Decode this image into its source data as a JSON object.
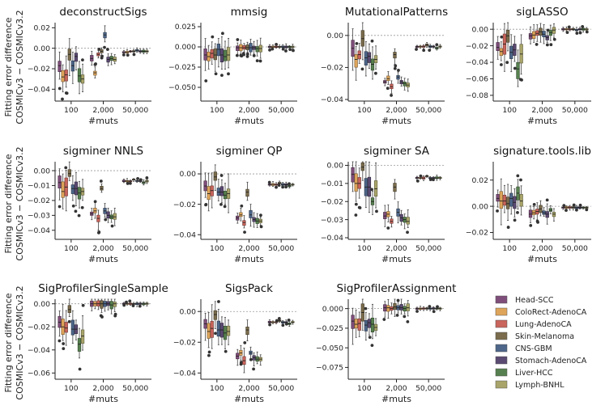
{
  "figure": {
    "y_axis_label_line1": "Fitting error difference",
    "y_axis_label_line2": "COSMICv3 − COSMICv3.2",
    "x_axis_label": "#muts"
  },
  "legend": [
    {
      "label": "Head-SCC",
      "color": "#7f4e7a"
    },
    {
      "label": "ColoRect-AdenoCA",
      "color": "#dea55a"
    },
    {
      "label": "Lung-AdenoCA",
      "color": "#c9655c"
    },
    {
      "label": "Skin-Melanoma",
      "color": "#7a6c4c"
    },
    {
      "label": "CNS-GBM",
      "color": "#4d6689"
    },
    {
      "label": "Stomach-AdenoCA",
      "color": "#5b4a72"
    },
    {
      "label": "Liver-HCC",
      "color": "#56804f"
    },
    {
      "label": "Lymph-BNHL",
      "color": "#a9a56a"
    }
  ],
  "chart_data": [
    {
      "type": "box",
      "title": "deconstructSigs",
      "categories": [
        "100",
        "2,000",
        "50,000"
      ],
      "xlabel": "#muts",
      "ylim": [
        -0.05,
        0.025
      ],
      "yticks": [
        -0.04,
        -0.02,
        0.0,
        0.02
      ],
      "ytick_labels": [
        "−0.04",
        "−0.02",
        "0.00",
        "0.02"
      ],
      "series_medians": [
        [
          -0.017,
          -0.028,
          -0.026,
          -0.006,
          -0.017,
          -0.008,
          -0.027,
          -0.03
        ],
        [
          -0.01,
          -0.024,
          -0.006,
          -0.003,
          0.013,
          -0.011,
          -0.01,
          -0.011
        ],
        [
          -0.004,
          -0.004,
          -0.003,
          -0.003,
          -0.002,
          -0.003,
          -0.003,
          -0.003
        ]
      ]
    },
    {
      "type": "box",
      "title": "mmsig",
      "categories": [
        "100",
        "2,000",
        "50,000"
      ],
      "xlabel": "#muts",
      "ylim": [
        -0.065,
        0.03
      ],
      "yticks": [
        -0.05,
        -0.025,
        0.0,
        0.025
      ],
      "ytick_labels": [
        "−0.050",
        "−0.025",
        "0.000",
        "0.025"
      ],
      "series_medians": [
        [
          -0.01,
          -0.012,
          -0.008,
          -0.01,
          -0.003,
          -0.01,
          -0.012,
          -0.01
        ],
        [
          -0.001,
          -0.001,
          -0.001,
          -0.001,
          -0.001,
          -0.001,
          -0.002,
          -0.002
        ],
        [
          0.0,
          0.0,
          0.0,
          0.0,
          0.0,
          0.0,
          0.0,
          0.0
        ]
      ]
    },
    {
      "type": "box",
      "title": "MutationalPatterns",
      "categories": [
        "100",
        "2,000",
        "50,000"
      ],
      "xlabel": "#muts",
      "ylim": [
        -0.04,
        0.008
      ],
      "yticks": [
        -0.04,
        -0.02,
        0.0
      ],
      "ytick_labels": [
        "−0.04",
        "−0.02",
        "0.00"
      ],
      "series_medians": [
        [
          -0.008,
          -0.015,
          -0.012,
          -0.002,
          -0.014,
          -0.013,
          -0.018,
          -0.015
        ],
        [
          -0.029,
          -0.027,
          -0.032,
          -0.012,
          -0.026,
          -0.029,
          -0.03,
          -0.031
        ],
        [
          -0.007,
          -0.007,
          -0.007,
          -0.006,
          -0.007,
          -0.007,
          -0.008,
          -0.007
        ]
      ]
    },
    {
      "type": "box",
      "title": "sigLASSO",
      "categories": [
        "100",
        "2,000",
        "50,000"
      ],
      "xlabel": "#muts",
      "ylim": [
        -0.085,
        0.008
      ],
      "yticks": [
        -0.08,
        -0.06,
        -0.04,
        -0.02,
        0.0
      ],
      "ytick_labels": [
        "−0.08",
        "−0.06",
        "−0.04",
        "−0.02",
        "0.00"
      ],
      "series_medians": [
        [
          -0.022,
          -0.027,
          -0.018,
          -0.008,
          -0.028,
          -0.025,
          -0.048,
          -0.03
        ],
        [
          -0.008,
          -0.007,
          -0.005,
          -0.003,
          -0.006,
          -0.01,
          -0.004,
          -0.001
        ],
        [
          0.0,
          0.0,
          0.0,
          0.0,
          -0.001,
          0.0,
          0.0,
          0.0
        ]
      ]
    },
    {
      "type": "box",
      "title": "sigminer NNLS",
      "categories": [
        "100",
        "2,000",
        "50,000"
      ],
      "xlabel": "#muts",
      "ylim": [
        -0.045,
        0.006
      ],
      "yticks": [
        -0.04,
        -0.03,
        -0.02,
        -0.01,
        0.0
      ],
      "ytick_labels": [
        "−0.04",
        "−0.03",
        "−0.02",
        "−0.01",
        "0.00"
      ],
      "series_medians": [
        [
          -0.008,
          -0.014,
          -0.011,
          -0.002,
          -0.012,
          -0.012,
          -0.015,
          -0.014
        ],
        [
          -0.029,
          -0.027,
          -0.032,
          -0.012,
          -0.027,
          -0.03,
          -0.031,
          -0.031
        ],
        [
          -0.007,
          -0.007,
          -0.007,
          -0.006,
          -0.007,
          -0.007,
          -0.008,
          -0.007
        ]
      ]
    },
    {
      "type": "box",
      "title": "sigminer QP",
      "categories": [
        "100",
        "2,000",
        "50,000"
      ],
      "xlabel": "#muts",
      "ylim": [
        -0.042,
        0.008
      ],
      "yticks": [
        -0.04,
        -0.02,
        0.0
      ],
      "ytick_labels": [
        "−0.04",
        "−0.02",
        "0.00"
      ],
      "series_medians": [
        [
          -0.008,
          -0.013,
          -0.011,
          -0.002,
          -0.012,
          -0.012,
          -0.014,
          -0.013
        ],
        [
          -0.029,
          -0.027,
          -0.032,
          -0.012,
          -0.027,
          -0.03,
          -0.031,
          -0.031
        ],
        [
          -0.007,
          -0.007,
          -0.007,
          -0.006,
          -0.007,
          -0.007,
          -0.008,
          -0.007
        ]
      ]
    },
    {
      "type": "box",
      "title": "sigminer SA",
      "categories": [
        "100",
        "2,000",
        "50,000"
      ],
      "xlabel": "#muts",
      "ylim": [
        -0.04,
        0.002
      ],
      "yticks": [
        -0.04,
        -0.03,
        -0.02,
        -0.01,
        0.0
      ],
      "ytick_labels": [
        "−0.04",
        "−0.03",
        "−0.02",
        "−0.01",
        "0.00"
      ],
      "series_medians": [
        [
          -0.005,
          -0.01,
          -0.01,
          -0.001,
          -0.012,
          -0.012,
          -0.02,
          -0.013
        ],
        [
          -0.028,
          -0.027,
          -0.031,
          -0.012,
          -0.026,
          -0.029,
          -0.03,
          -0.031
        ],
        [
          -0.007,
          -0.007,
          -0.007,
          -0.006,
          -0.007,
          -0.007,
          -0.007,
          -0.007
        ]
      ]
    },
    {
      "type": "box",
      "title": "signature.tools.lib",
      "categories": [
        "100",
        "2,000",
        "50,000"
      ],
      "xlabel": "#muts",
      "ylim": [
        -0.024,
        0.034
      ],
      "yticks": [
        -0.02,
        0.0,
        0.02
      ],
      "ytick_labels": [
        "−0.02",
        "0.00",
        "0.02"
      ],
      "series_medians": [
        [
          0.006,
          0.004,
          0.004,
          0.002,
          0.006,
          0.003,
          0.01,
          0.004
        ],
        [
          -0.006,
          -0.005,
          -0.004,
          -0.002,
          -0.005,
          -0.006,
          -0.003,
          -0.006
        ],
        [
          -0.001,
          -0.001,
          -0.001,
          -0.001,
          -0.001,
          -0.001,
          -0.001,
          -0.001
        ]
      ]
    },
    {
      "type": "box",
      "title": "SigProfilerSingleSample",
      "categories": [
        "100",
        "2,000",
        "50,000"
      ],
      "xlabel": "#muts",
      "ylim": [
        -0.064,
        0.004
      ],
      "yticks": [
        -0.06,
        -0.04,
        -0.02,
        0.0
      ],
      "ytick_labels": [
        "−0.06",
        "−0.04",
        "−0.02",
        "0.00"
      ],
      "series_medians": [
        [
          -0.016,
          -0.02,
          -0.021,
          -0.005,
          -0.022,
          -0.022,
          -0.035,
          -0.028
        ],
        [
          0.0,
          0.0,
          0.0,
          0.0,
          0.0,
          0.0,
          -0.001,
          0.0
        ],
        [
          0.0,
          0.0,
          0.0,
          0.0,
          0.0,
          0.0,
          0.0,
          0.0
        ]
      ]
    },
    {
      "type": "box",
      "title": "SigsPack",
      "categories": [
        "100",
        "2,000",
        "50,000"
      ],
      "xlabel": "#muts",
      "ylim": [
        -0.043,
        0.008
      ],
      "yticks": [
        -0.04,
        -0.02,
        0.0
      ],
      "ytick_labels": [
        "−0.04",
        "−0.02",
        "0.00"
      ],
      "series_medians": [
        [
          -0.008,
          -0.013,
          -0.011,
          -0.002,
          -0.012,
          -0.012,
          -0.014,
          -0.013
        ],
        [
          -0.029,
          -0.027,
          -0.032,
          -0.012,
          -0.027,
          -0.03,
          -0.031,
          -0.031
        ],
        [
          -0.007,
          -0.007,
          -0.007,
          -0.006,
          -0.007,
          -0.007,
          -0.008,
          -0.007
        ]
      ]
    },
    {
      "type": "box",
      "title": "SigProfilerAssignment",
      "categories": [
        "100",
        "2,000",
        "50,000"
      ],
      "xlabel": "#muts",
      "ylim": [
        -0.088,
        0.012
      ],
      "yticks": [
        -0.075,
        -0.05,
        -0.025,
        0.0
      ],
      "ytick_labels": [
        "−0.075",
        "−0.050",
        "−0.025",
        "0.000"
      ],
      "series_medians": [
        [
          -0.016,
          -0.02,
          -0.019,
          -0.005,
          -0.021,
          -0.018,
          -0.02,
          -0.024
        ],
        [
          0.001,
          0.001,
          0.0,
          0.002,
          0.001,
          0.001,
          0.0,
          0.001
        ],
        [
          0.0,
          0.0,
          0.0,
          0.0,
          0.0,
          0.0,
          0.0,
          0.0
        ]
      ]
    }
  ]
}
